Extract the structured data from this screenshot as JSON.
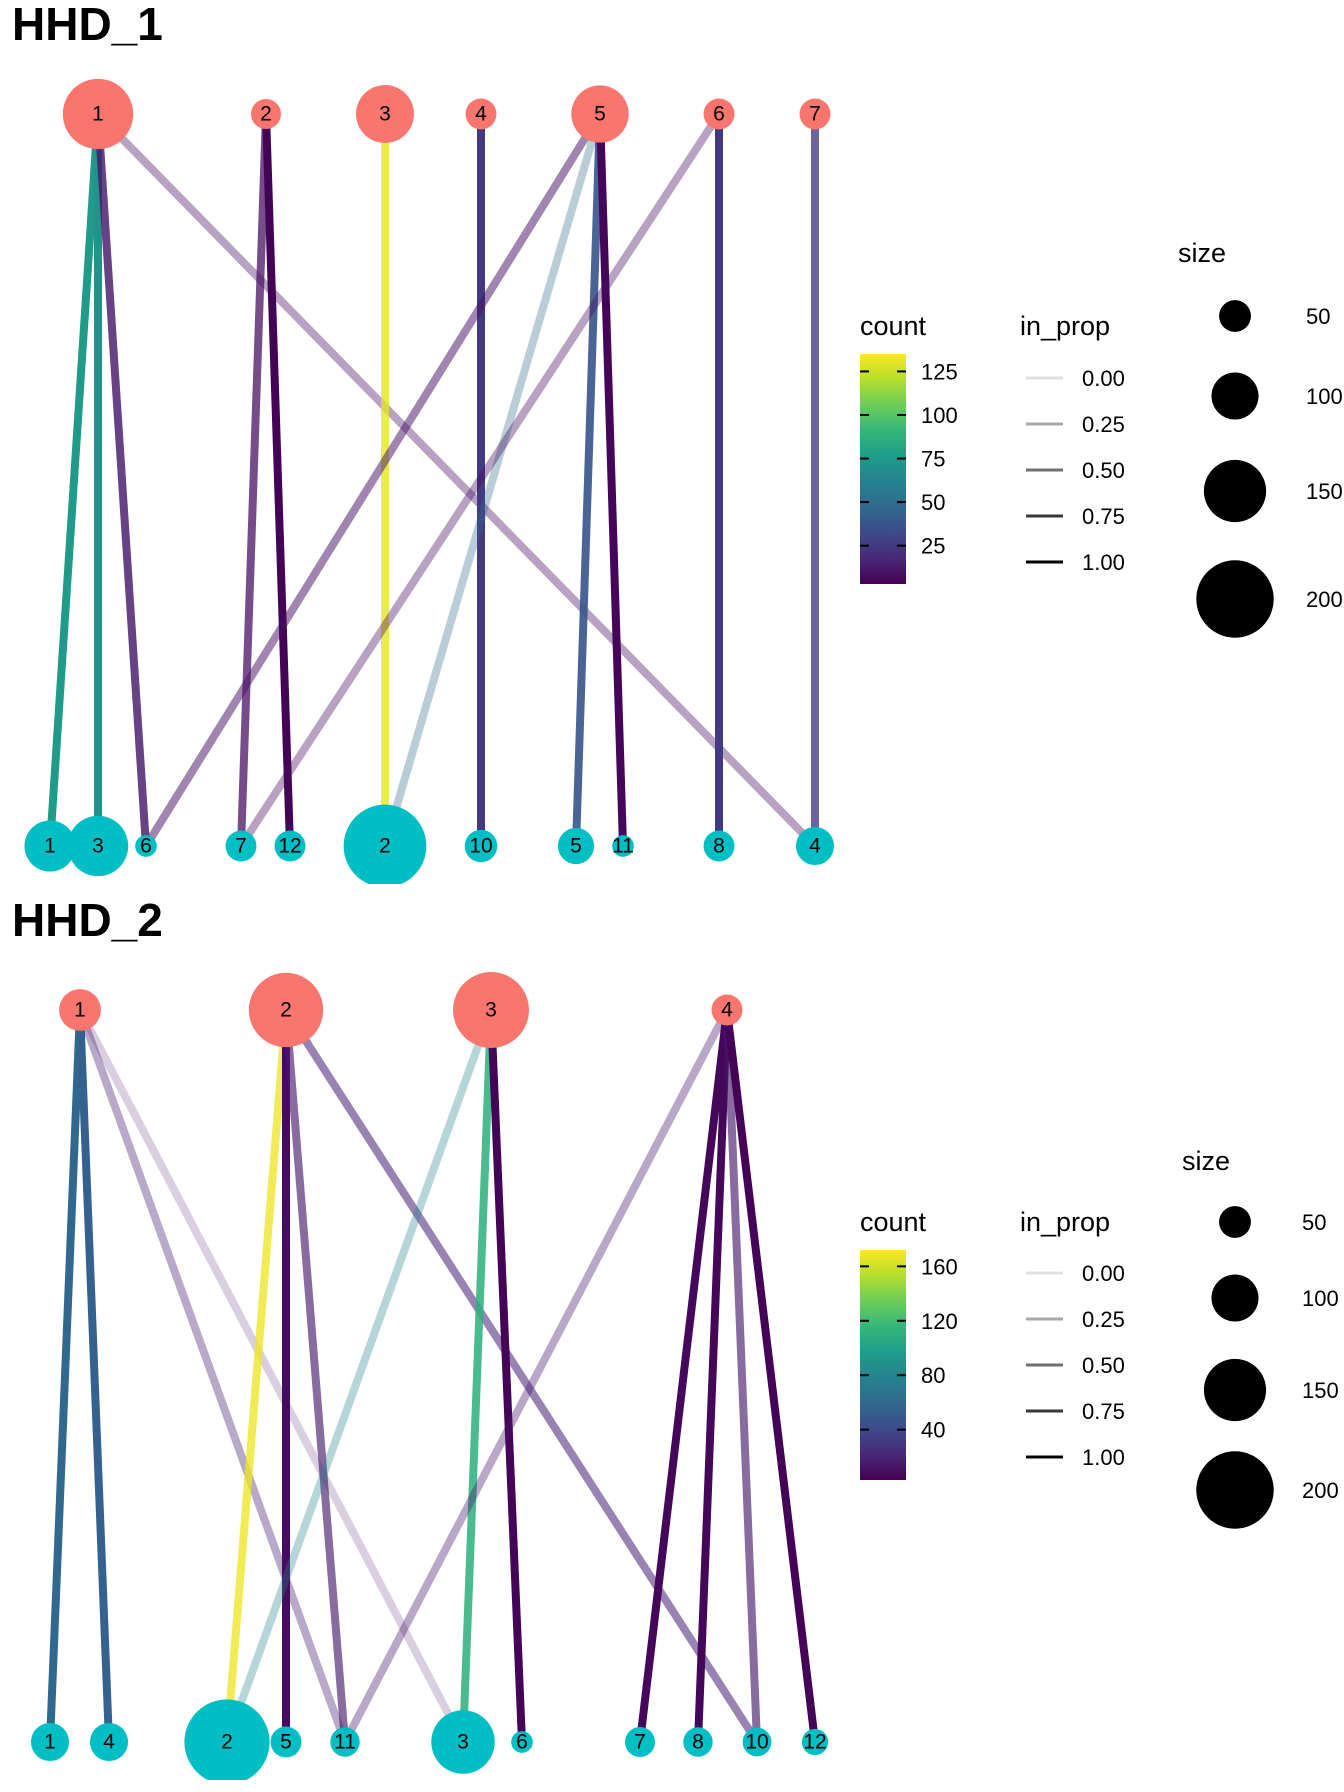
{
  "colors": {
    "top_node": "#F8766D",
    "bottom_node": "#00BFC4",
    "viridis": [
      "#440154",
      "#482878",
      "#3E4A89",
      "#31688E",
      "#26828E",
      "#1F9E89",
      "#35B779",
      "#6DCD59",
      "#B4DE2C",
      "#FDE725"
    ]
  },
  "chart_data": [
    {
      "type": "network",
      "title": "HHD_1",
      "top_nodes": [
        {
          "id": "1",
          "label": "1",
          "size": 172
        },
        {
          "id": "2",
          "label": "2",
          "size": 42
        },
        {
          "id": "3",
          "label": "3",
          "size": 132
        },
        {
          "id": "4",
          "label": "4",
          "size": 45
        },
        {
          "id": "5",
          "label": "5",
          "size": 130
        },
        {
          "id": "6",
          "label": "6",
          "size": 45
        },
        {
          "id": "7",
          "label": "7",
          "size": 45
        }
      ],
      "bottom_nodes": [
        {
          "id": "1",
          "label": "1",
          "size": 110
        },
        {
          "id": "3",
          "label": "3",
          "size": 140
        },
        {
          "id": "6",
          "label": "6",
          "size": 15
        },
        {
          "id": "7",
          "label": "7",
          "size": 45
        },
        {
          "id": "12",
          "label": "12",
          "size": 45
        },
        {
          "id": "2",
          "label": "2",
          "size": 212
        },
        {
          "id": "10",
          "label": "10",
          "size": 50
        },
        {
          "id": "5",
          "label": "5",
          "size": 62
        },
        {
          "id": "11",
          "label": "11",
          "size": 15
        },
        {
          "id": "8",
          "label": "8",
          "size": 45
        },
        {
          "id": "4",
          "label": "4",
          "size": 68
        }
      ],
      "edges": [
        {
          "from": "1",
          "to": "1",
          "count": 75,
          "in_prop": 1.0
        },
        {
          "from": "1",
          "to": "3",
          "count": 70,
          "in_prop": 1.0
        },
        {
          "from": "1",
          "to": "6",
          "count": 12,
          "in_prop": 0.8
        },
        {
          "from": "1",
          "to": "4",
          "count": 8,
          "in_prop": 0.3
        },
        {
          "from": "2",
          "to": "7",
          "count": 8,
          "in_prop": 0.7
        },
        {
          "from": "2",
          "to": "12",
          "count": 4,
          "in_prop": 1.0
        },
        {
          "from": "3",
          "to": "2",
          "count": 130,
          "in_prop": 0.75
        },
        {
          "from": "4",
          "to": "10",
          "count": 25,
          "in_prop": 1.0
        },
        {
          "from": "5",
          "to": "6",
          "count": 10,
          "in_prop": 0.45
        },
        {
          "from": "5",
          "to": "2",
          "count": 50,
          "in_prop": 0.25
        },
        {
          "from": "5",
          "to": "5",
          "count": 38,
          "in_prop": 0.9
        },
        {
          "from": "5",
          "to": "11",
          "count": 5,
          "in_prop": 1.0
        },
        {
          "from": "6",
          "to": "7",
          "count": 8,
          "in_prop": 0.3
        },
        {
          "from": "6",
          "to": "8",
          "count": 25,
          "in_prop": 1.0
        },
        {
          "from": "7",
          "to": "4",
          "count": 25,
          "in_prop": 0.75
        }
      ],
      "legend": {
        "count": {
          "title": "count",
          "ticks": [
            125,
            100,
            75,
            50,
            25
          ],
          "range": [
            3,
            135
          ]
        },
        "in_prop": {
          "title": "in_prop",
          "values": [
            "0.00",
            "0.25",
            "0.50",
            "0.75",
            "1.00"
          ]
        },
        "size": {
          "title": "size",
          "values": [
            "50",
            "100",
            "150",
            "200"
          ]
        }
      }
    },
    {
      "type": "network",
      "title": "HHD_2",
      "top_nodes": [
        {
          "id": "1",
          "label": "1",
          "size": 80
        },
        {
          "id": "2",
          "label": "2",
          "size": 185
        },
        {
          "id": "3",
          "label": "3",
          "size": 190
        },
        {
          "id": "4",
          "label": "4",
          "size": 45
        }
      ],
      "bottom_nodes": [
        {
          "id": "1",
          "label": "1",
          "size": 68
        },
        {
          "id": "4",
          "label": "4",
          "size": 68
        },
        {
          "id": "2",
          "label": "2",
          "size": 220
        },
        {
          "id": "5",
          "label": "5",
          "size": 45
        },
        {
          "id": "11",
          "label": "11",
          "size": 40
        },
        {
          "id": "3",
          "label": "3",
          "size": 150
        },
        {
          "id": "6",
          "label": "6",
          "size": 15
        },
        {
          "id": "7",
          "label": "7",
          "size": 42
        },
        {
          "id": "8",
          "label": "8",
          "size": 40
        },
        {
          "id": "10",
          "label": "10",
          "size": 38
        },
        {
          "id": "12",
          "label": "12",
          "size": 30
        }
      ],
      "edges": [
        {
          "from": "1",
          "to": "1",
          "count": 60,
          "in_prop": 1.0
        },
        {
          "from": "1",
          "to": "4",
          "count": 55,
          "in_prop": 1.0
        },
        {
          "from": "1",
          "to": "11",
          "count": 18,
          "in_prop": 0.3
        },
        {
          "from": "1",
          "to": "3",
          "count": 15,
          "in_prop": 0.1
        },
        {
          "from": "2",
          "to": "2",
          "count": 168,
          "in_prop": 0.75
        },
        {
          "from": "2",
          "to": "5",
          "count": 8,
          "in_prop": 1.0
        },
        {
          "from": "2",
          "to": "11",
          "count": 15,
          "in_prop": 0.6
        },
        {
          "from": "2",
          "to": "10",
          "count": 20,
          "in_prop": 0.5
        },
        {
          "from": "3",
          "to": "2",
          "count": 80,
          "in_prop": 0.25
        },
        {
          "from": "3",
          "to": "3",
          "count": 110,
          "in_prop": 0.85
        },
        {
          "from": "3",
          "to": "6",
          "count": 5,
          "in_prop": 1.0
        },
        {
          "from": "4",
          "to": "11",
          "count": 15,
          "in_prop": 0.3
        },
        {
          "from": "4",
          "to": "7",
          "count": 6,
          "in_prop": 1.0
        },
        {
          "from": "4",
          "to": "8",
          "count": 6,
          "in_prop": 1.0
        },
        {
          "from": "4",
          "to": "10",
          "count": 15,
          "in_prop": 0.6
        },
        {
          "from": "4",
          "to": "12",
          "count": 4,
          "in_prop": 1.0
        }
      ],
      "legend": {
        "count": {
          "title": "count",
          "ticks": [
            160,
            120,
            80,
            40
          ],
          "range": [
            3,
            172
          ]
        },
        "in_prop": {
          "title": "in_prop",
          "values": [
            "0.00",
            "0.25",
            "0.50",
            "0.75",
            "1.00"
          ]
        },
        "size": {
          "title": "size",
          "values": [
            "50",
            "100",
            "150",
            "200"
          ]
        }
      }
    }
  ]
}
